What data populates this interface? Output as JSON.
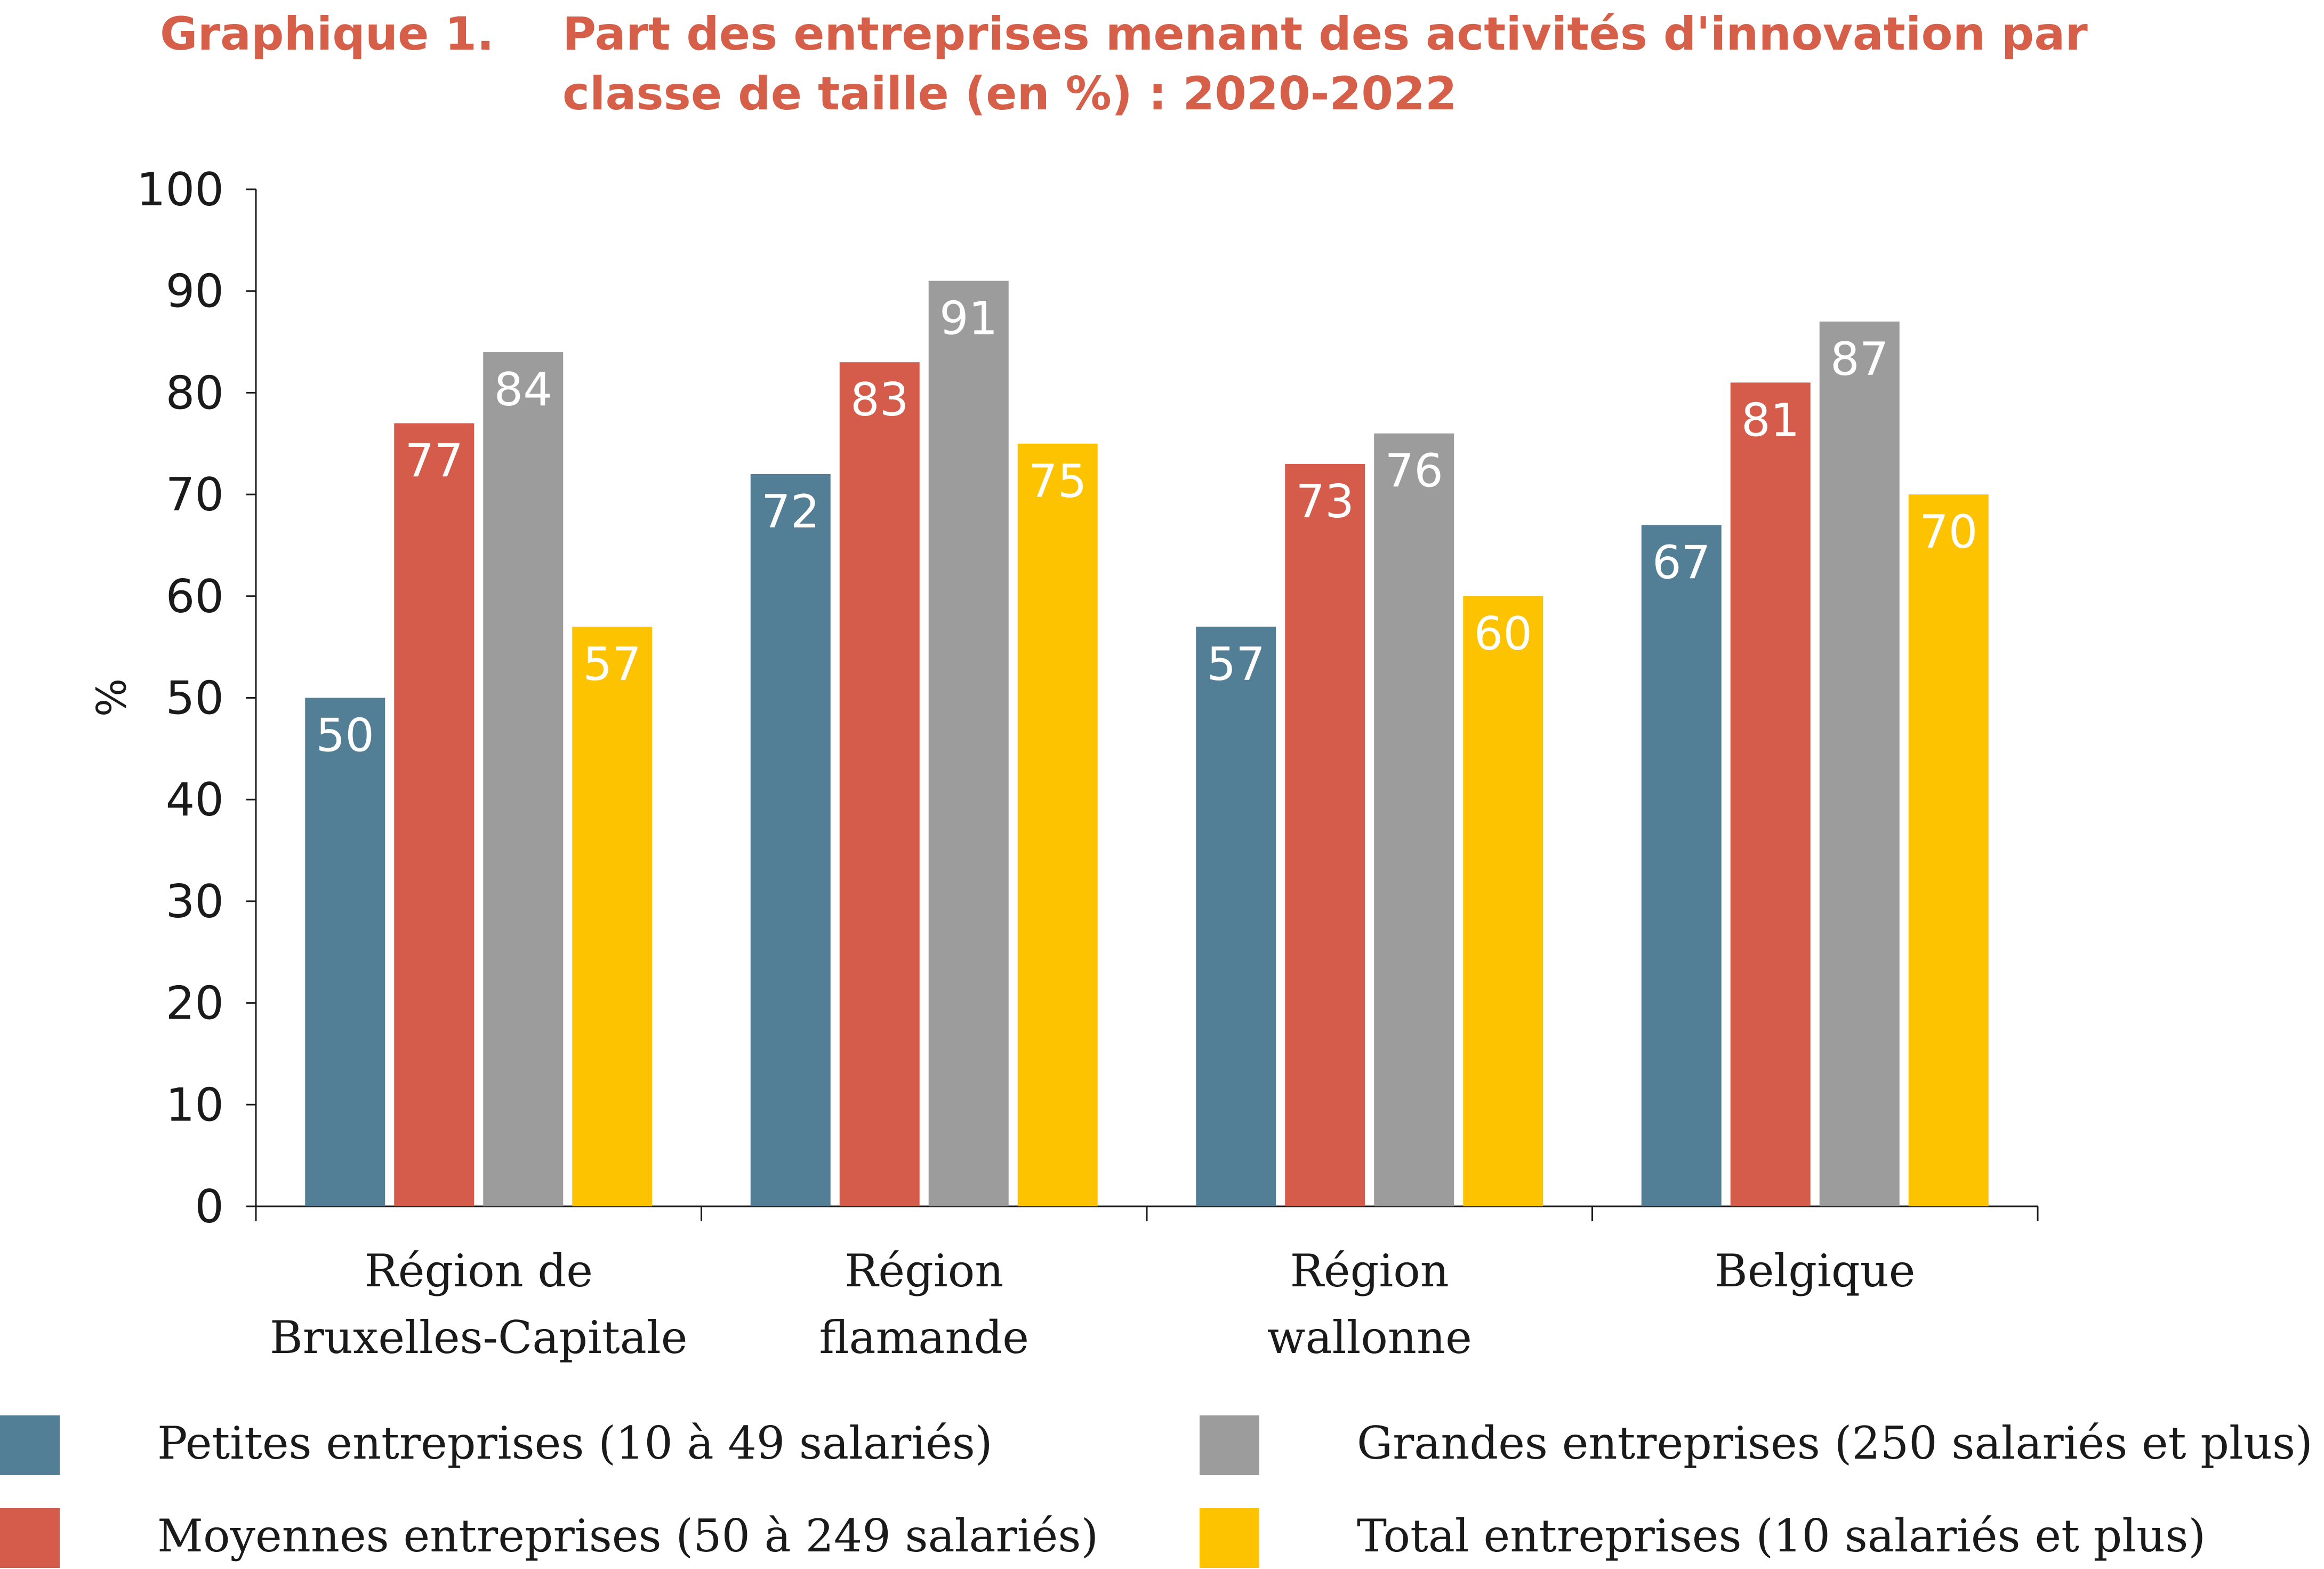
{
  "figure": {
    "label": "Graphique 1.",
    "title": "Part des entreprises menant des activités d'innovation par classe de taille (en %) : 2020-2022"
  },
  "chart_data": {
    "type": "bar",
    "categories": [
      [
        "Région de",
        "Bruxelles-Capitale"
      ],
      [
        "Région",
        "flamande"
      ],
      [
        "Région",
        "wallonne"
      ],
      [
        "Belgique"
      ]
    ],
    "series": [
      {
        "name": "Petites entreprises (10 à 49 salariés)",
        "color": "#527f95",
        "values": [
          50,
          72,
          57,
          67
        ]
      },
      {
        "name": "Moyennes entreprises (50 à 249 salariés)",
        "color": "#d55b4a",
        "values": [
          77,
          83,
          73,
          81
        ]
      },
      {
        "name": "Grandes entreprises (250 salariés et plus)",
        "color": "#9c9c9c",
        "values": [
          84,
          91,
          76,
          87
        ]
      },
      {
        "name": "Total entreprises (10 salariés et plus)",
        "color": "#fdc300",
        "values": [
          57,
          75,
          60,
          70
        ]
      }
    ],
    "ylabel": "%",
    "xlabel": "",
    "ylim": [
      0,
      100
    ],
    "yticks": [
      0,
      10,
      20,
      30,
      40,
      50,
      60,
      70,
      80,
      90,
      100
    ],
    "data_labels": true,
    "grid": false,
    "legend_position": "bottom"
  }
}
